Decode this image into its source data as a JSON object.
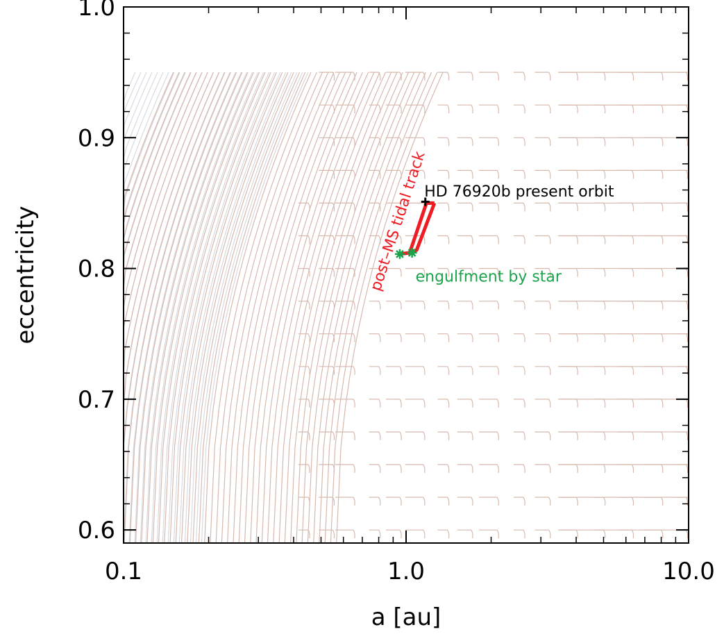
{
  "chart_data": {
    "type": "line",
    "title": "",
    "xlabel": "a [au]",
    "ylabel": "eccentricity",
    "xscale": "log",
    "xlim": [
      0.1,
      10.0
    ],
    "ylim": [
      0.59,
      1.0
    ],
    "xticks": [
      {
        "value": 0.1,
        "label": "0.1"
      },
      {
        "value": 1.0,
        "label": "1.0"
      },
      {
        "value": 10.0,
        "label": "10.0"
      }
    ],
    "yticks": [
      {
        "value": 0.6,
        "label": "0.6"
      },
      {
        "value": 0.7,
        "label": "0.7"
      },
      {
        "value": 0.8,
        "label": "0.8"
      },
      {
        "value": 0.9,
        "label": "0.9"
      },
      {
        "value": 1.0,
        "label": "1.0"
      }
    ],
    "grid": false,
    "legend": "none",
    "colors": {
      "grey_tracks": "#d6d9e0",
      "pink_tracks": "#d7b8ad",
      "red_track": "#ee1c24",
      "green_markers": "#1aa34a",
      "present_orbit": "#000000"
    },
    "background_tracks": {
      "grey": {
        "e_end": 0.95,
        "a_min": 0.11,
        "a_max": 0.45,
        "count": 32
      },
      "pink": {
        "e_end": 0.95,
        "a_min": 0.15,
        "a_max": 1.35,
        "count": 48
      },
      "short_segments_e": [
        0.6,
        0.625,
        0.65,
        0.675,
        0.7,
        0.725,
        0.75,
        0.775,
        0.8,
        0.825,
        0.85,
        0.875,
        0.9,
        0.925,
        0.95
      ],
      "short_segments_a": [
        0.45,
        0.55,
        0.65,
        0.8,
        0.95,
        1.15,
        1.4,
        1.7,
        2.1,
        2.6,
        3.2,
        4.0,
        5.0,
        6.3,
        8.0,
        9.8
      ]
    },
    "series": [
      {
        "x": [
          1.18,
          1.03,
          0.95
        ],
        "y": [
          0.85,
          0.812,
          0.811
        ]
      },
      {
        "x": [
          1.26,
          1.09,
          1.04
        ],
        "y": [
          0.85,
          0.814,
          0.813
        ]
      }
    ],
    "present_orbit": {
      "a": 1.17,
      "e": 0.851,
      "label": "HD 76920b present orbit"
    },
    "engulfment_points": [
      {
        "a": 0.95,
        "e": 0.811
      },
      {
        "a": 1.05,
        "e": 0.812
      }
    ],
    "annotations": [
      {
        "text": "post–MS tidal track",
        "color": "#ee1c24"
      },
      {
        "text": "engulfment by star",
        "color": "#1aa34a"
      },
      {
        "text": "HD 76920b present orbit",
        "color": "#000000"
      }
    ]
  }
}
